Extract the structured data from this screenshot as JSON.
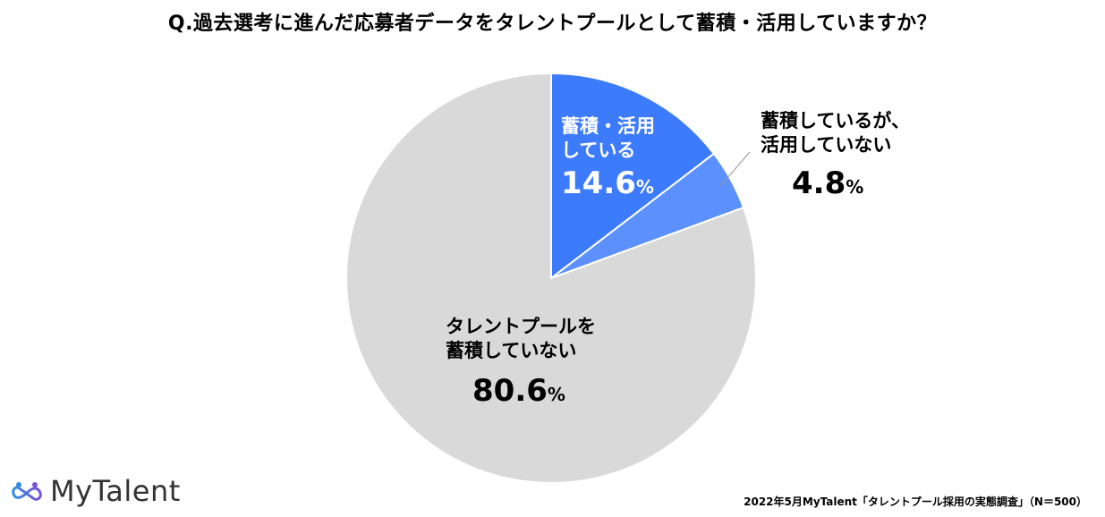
{
  "title": "Q.過去選考に進んだ応募者データをタレントプールとして蓄積・活用していますか？",
  "chart_data": {
    "type": "pie",
    "title": "Q.過去選考に進んだ応募者データをタレントプールとして蓄積・活用していますか？",
    "slices": [
      {
        "label_lines": [
          "蓄積・活用",
          "している"
        ],
        "value": 14.6,
        "value_text": "14.6",
        "color": "#3d7bfd",
        "text_color": "#ffffff"
      },
      {
        "label_lines": [
          "蓄積しているが、",
          "活用していない"
        ],
        "value": 4.8,
        "value_text": "4.8",
        "color": "#5b90fd",
        "text_color": "#000000"
      },
      {
        "label_lines": [
          "タレントプールを",
          "蓄積していない"
        ],
        "value": 80.6,
        "value_text": "80.6",
        "color": "#d9d9d9",
        "text_color": "#000000"
      }
    ],
    "unit": "%"
  },
  "logo": {
    "text": "MyTalent",
    "icon": "infinity-people-icon",
    "colors": [
      "#2f8fe0",
      "#7c4fd8"
    ]
  },
  "source": "2022年5月MyTalent「タレントプール採用の実態調査」（N＝500）"
}
